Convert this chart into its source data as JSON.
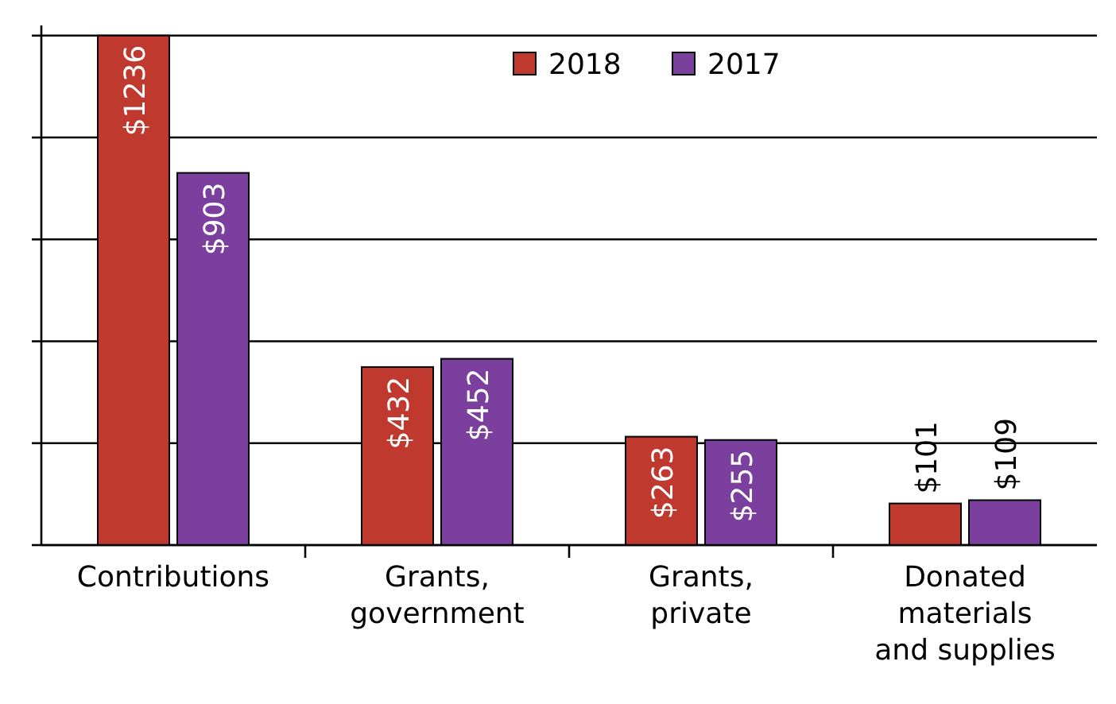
{
  "chart_data": {
    "type": "bar",
    "categories": [
      "Contributions",
      "Grants, government",
      "Grants, private",
      "Donated materials and supplies"
    ],
    "series": [
      {
        "name": "2018",
        "color": "#c0392f",
        "values": [
          1236,
          432,
          263,
          101
        ],
        "value_labels": [
          "$1236",
          "$432",
          "$263",
          "$101"
        ]
      },
      {
        "name": "2017",
        "color": "#7b3f9e",
        "values": [
          903,
          452,
          255,
          109
        ],
        "value_labels": [
          "$903",
          "$452",
          "$255",
          "$109"
        ]
      }
    ],
    "tick_labels": "x",
    "grid": "y",
    "legend": "top"
  }
}
